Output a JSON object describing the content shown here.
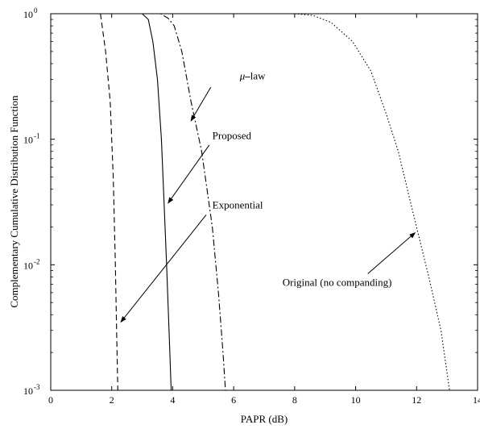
{
  "chart_data": {
    "type": "line",
    "title": "",
    "xlabel": "PAPR (dB)",
    "ylabel": "Complementary Cumulative Distribution Function",
    "xlim": [
      0,
      14
    ],
    "ylim": [
      0.001,
      1
    ],
    "yscale": "log",
    "grid": false,
    "legend": "none (curves labelled by arrow annotations)",
    "x_ticks": [
      {
        "value": 0,
        "label": "0"
      },
      {
        "value": 2,
        "label": "2"
      },
      {
        "value": 4,
        "label": "4"
      },
      {
        "value": 6,
        "label": "6"
      },
      {
        "value": 8,
        "label": "8"
      },
      {
        "value": 10,
        "label": "10"
      },
      {
        "value": 12,
        "label": "12"
      },
      {
        "value": 14,
        "label": "14"
      }
    ],
    "y_ticks": [
      {
        "value": 1,
        "base": "10",
        "exp": "0"
      },
      {
        "value": 0.1,
        "base": "10",
        "exp": "-1"
      },
      {
        "value": 0.01,
        "base": "10",
        "exp": "-2"
      },
      {
        "value": 0.001,
        "base": "10",
        "exp": "-3"
      }
    ],
    "series": [
      {
        "style": "dashed",
        "points": [
          [
            1.63,
            1.0
          ],
          [
            1.8,
            0.5
          ],
          [
            1.95,
            0.2
          ],
          [
            2.05,
            0.05
          ],
          [
            2.12,
            0.01
          ],
          [
            2.16,
            0.003
          ],
          [
            2.2,
            0.001
          ]
        ]
      },
      {
        "style": "solid",
        "points": [
          [
            3.0,
            1.0
          ],
          [
            3.2,
            0.9
          ],
          [
            3.35,
            0.6
          ],
          [
            3.5,
            0.3
          ],
          [
            3.63,
            0.1
          ],
          [
            3.72,
            0.03
          ],
          [
            3.8,
            0.01
          ],
          [
            3.88,
            0.003
          ],
          [
            3.95,
            0.001
          ]
        ]
      },
      {
        "style": "dashdot",
        "points": [
          [
            3.3,
            1.0
          ],
          [
            3.6,
            1.0
          ],
          [
            3.85,
            0.92
          ],
          [
            4.05,
            0.8
          ],
          [
            4.3,
            0.5
          ],
          [
            4.6,
            0.2
          ],
          [
            4.95,
            0.08
          ],
          [
            5.3,
            0.02
          ],
          [
            5.5,
            0.006
          ],
          [
            5.65,
            0.002
          ],
          [
            5.73,
            0.001
          ]
        ]
      },
      {
        "style": "dotted",
        "points": [
          [
            8.0,
            1.0
          ],
          [
            8.6,
            0.97
          ],
          [
            9.2,
            0.85
          ],
          [
            9.9,
            0.6
          ],
          [
            10.5,
            0.35
          ],
          [
            11.0,
            0.16
          ],
          [
            11.4,
            0.08
          ],
          [
            11.9,
            0.025
          ],
          [
            12.4,
            0.008
          ],
          [
            12.8,
            0.003
          ],
          [
            13.08,
            0.001
          ]
        ]
      }
    ],
    "annotations": [
      {
        "id": "mu-law",
        "greek": "μ",
        "text": "law",
        "label_at": [
          6.2,
          0.3
        ],
        "arrow_from": [
          5.25,
          0.26
        ],
        "arrow_to": [
          4.6,
          0.14
        ]
      },
      {
        "id": "proposed",
        "text": "Proposed",
        "label_at": [
          5.3,
          0.1
        ],
        "arrow_from": [
          5.2,
          0.09
        ],
        "arrow_to": [
          3.85,
          0.031
        ]
      },
      {
        "id": "exponential",
        "text": "Exponential",
        "label_at": [
          5.3,
          0.028
        ],
        "arrow_from": [
          5.1,
          0.025
        ],
        "arrow_to": [
          2.3,
          0.0035
        ]
      },
      {
        "id": "original",
        "text": "Original (no companding)",
        "label_at": [
          7.6,
          0.0068
        ],
        "arrow_from": [
          10.4,
          0.0085
        ],
        "arrow_to": [
          11.95,
          0.018
        ]
      }
    ]
  }
}
